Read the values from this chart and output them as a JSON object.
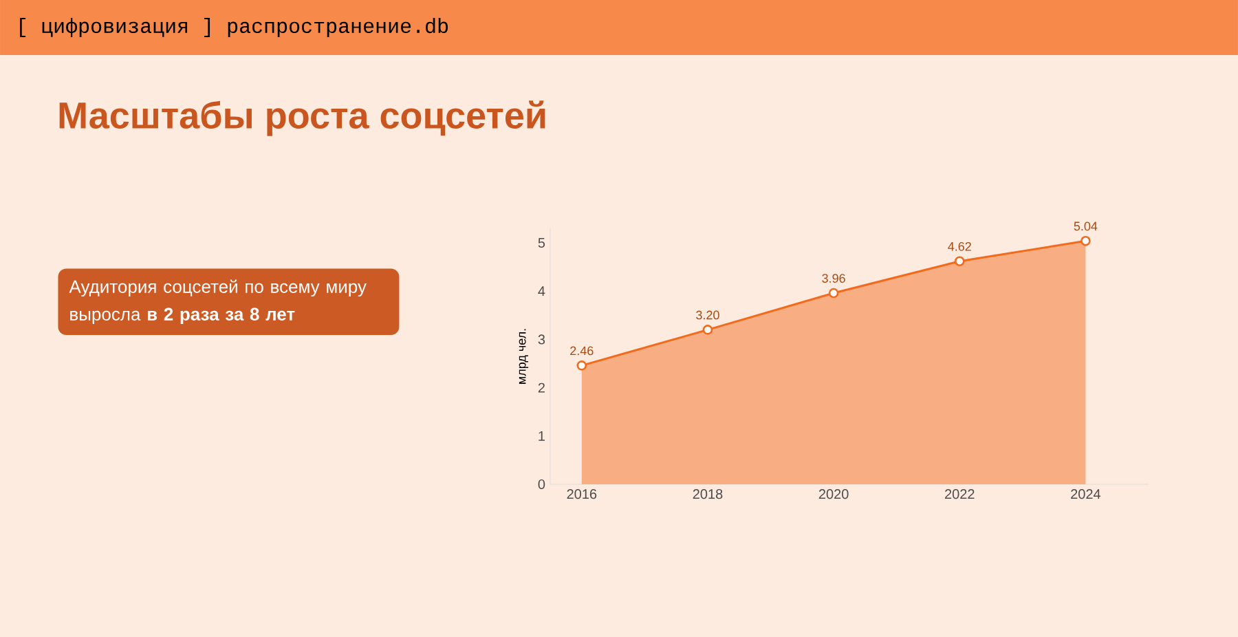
{
  "chart_data": {
    "type": "area",
    "title": "Масштабы роста соцсетей",
    "ylabel": "млрд чел.",
    "annotations": [
      "[ цифровизация ] распространение.db",
      "Аудитория соцсетей по всему миру выросла **в 2 раза за 8 лет**"
    ],
    "x": [
      2016,
      2018,
      2020,
      2022,
      2024
    ],
    "series": [
      {
        "color": "#f26a1b",
        "values": [
          2.46,
          3.2,
          3.96,
          4.62,
          5.04
        ],
        "value_labels": [
          "2.46",
          "3.20",
          "3.96",
          "4.62",
          "5.04"
        ]
      }
    ],
    "xlim": [
      2015.5,
      2025
    ],
    "ylim": [
      0,
      5.3
    ],
    "xticks": [
      2016,
      2018,
      2020,
      2022,
      2024
    ],
    "yticks": [
      0,
      1,
      2,
      3,
      4,
      5
    ],
    "marker": "circle",
    "line_style": "solid"
  }
}
